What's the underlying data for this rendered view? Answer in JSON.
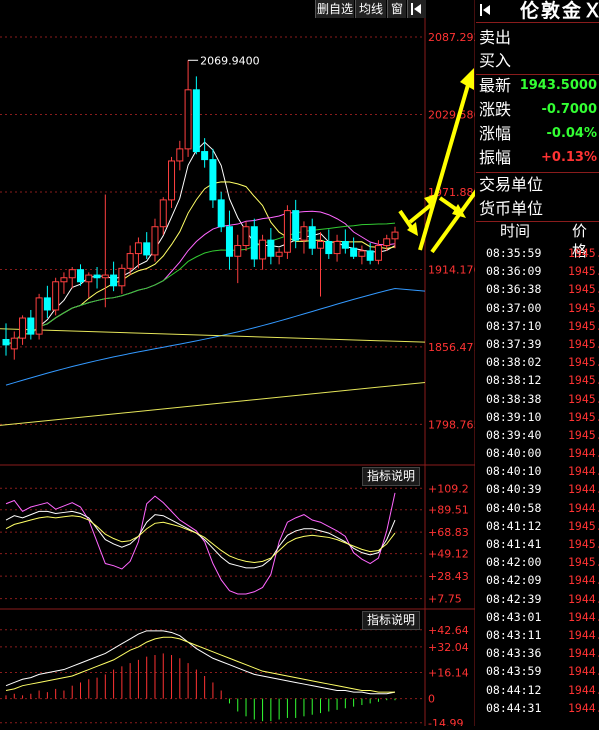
{
  "toolbar": {
    "delete_watch": "删自选",
    "ma_line": "均线",
    "window": "窗",
    "pin_icon": "pin-right-icon"
  },
  "chart_data": [
    {
      "type": "candlestick",
      "title": "",
      "price_axis_ticks": [
        "2087.292",
        "2029.586",
        "1971.881",
        "1914.176",
        "1856.471",
        "1798.765"
      ],
      "high_annotation": "2069.9400",
      "ylim": [
        1770,
        2100
      ],
      "candles": [
        {
          "o": 1862,
          "h": 1874,
          "l": 1850,
          "c": 1858
        },
        {
          "o": 1855,
          "h": 1868,
          "l": 1847,
          "c": 1863
        },
        {
          "o": 1863,
          "h": 1880,
          "l": 1858,
          "c": 1878
        },
        {
          "o": 1878,
          "h": 1884,
          "l": 1862,
          "c": 1866
        },
        {
          "o": 1866,
          "h": 1896,
          "l": 1862,
          "c": 1893
        },
        {
          "o": 1893,
          "h": 1902,
          "l": 1878,
          "c": 1884
        },
        {
          "o": 1884,
          "h": 1908,
          "l": 1880,
          "c": 1905
        },
        {
          "o": 1905,
          "h": 1912,
          "l": 1896,
          "c": 1908
        },
        {
          "o": 1908,
          "h": 1916,
          "l": 1900,
          "c": 1914
        },
        {
          "o": 1914,
          "h": 1918,
          "l": 1902,
          "c": 1905
        },
        {
          "o": 1905,
          "h": 1912,
          "l": 1893,
          "c": 1910
        },
        {
          "o": 1910,
          "h": 1916,
          "l": 1900,
          "c": 1908
        },
        {
          "o": 1908,
          "h": 1970,
          "l": 1886,
          "c": 1910
        },
        {
          "o": 1910,
          "h": 1920,
          "l": 1898,
          "c": 1902
        },
        {
          "o": 1902,
          "h": 1918,
          "l": 1896,
          "c": 1915
        },
        {
          "o": 1915,
          "h": 1932,
          "l": 1910,
          "c": 1926
        },
        {
          "o": 1926,
          "h": 1938,
          "l": 1915,
          "c": 1934
        },
        {
          "o": 1934,
          "h": 1942,
          "l": 1922,
          "c": 1925
        },
        {
          "o": 1925,
          "h": 1952,
          "l": 1920,
          "c": 1946
        },
        {
          "o": 1946,
          "h": 1968,
          "l": 1940,
          "c": 1966
        },
        {
          "o": 1966,
          "h": 1998,
          "l": 1960,
          "c": 1995
        },
        {
          "o": 1995,
          "h": 2010,
          "l": 1988,
          "c": 2004
        },
        {
          "o": 2004,
          "h": 2070,
          "l": 1998,
          "c": 2048
        },
        {
          "o": 2048,
          "h": 2058,
          "l": 2000,
          "c": 2002
        },
        {
          "o": 2002,
          "h": 2012,
          "l": 1990,
          "c": 1996
        },
        {
          "o": 1996,
          "h": 2004,
          "l": 1960,
          "c": 1966
        },
        {
          "o": 1966,
          "h": 1972,
          "l": 1942,
          "c": 1946
        },
        {
          "o": 1946,
          "h": 1958,
          "l": 1914,
          "c": 1924
        },
        {
          "o": 1924,
          "h": 1940,
          "l": 1904,
          "c": 1932
        },
        {
          "o": 1932,
          "h": 1950,
          "l": 1928,
          "c": 1946
        },
        {
          "o": 1946,
          "h": 1952,
          "l": 1916,
          "c": 1922
        },
        {
          "o": 1922,
          "h": 1940,
          "l": 1914,
          "c": 1936
        },
        {
          "o": 1936,
          "h": 1945,
          "l": 1918,
          "c": 1924
        },
        {
          "o": 1924,
          "h": 1930,
          "l": 1918,
          "c": 1927
        },
        {
          "o": 1927,
          "h": 1962,
          "l": 1922,
          "c": 1958
        },
        {
          "o": 1958,
          "h": 1966,
          "l": 1930,
          "c": 1936
        },
        {
          "o": 1936,
          "h": 1950,
          "l": 1926,
          "c": 1946
        },
        {
          "o": 1946,
          "h": 1952,
          "l": 1925,
          "c": 1930
        },
        {
          "o": 1930,
          "h": 1942,
          "l": 1894,
          "c": 1935
        },
        {
          "o": 1935,
          "h": 1944,
          "l": 1922,
          "c": 1926
        },
        {
          "o": 1926,
          "h": 1940,
          "l": 1920,
          "c": 1935
        },
        {
          "o": 1935,
          "h": 1944,
          "l": 1926,
          "c": 1930
        },
        {
          "o": 1930,
          "h": 1938,
          "l": 1922,
          "c": 1924
        },
        {
          "o": 1924,
          "h": 1932,
          "l": 1918,
          "c": 1928
        },
        {
          "o": 1928,
          "h": 1934,
          "l": 1918,
          "c": 1921
        },
        {
          "o": 1921,
          "h": 1936,
          "l": 1918,
          "c": 1932
        },
        {
          "o": 1932,
          "h": 1940,
          "l": 1928,
          "c": 1937
        },
        {
          "o": 1937,
          "h": 1946,
          "l": 1930,
          "c": 1942
        }
      ],
      "trend_lines": [
        {
          "color": "#e6e65a",
          "from": 1870,
          "to": 1860
        },
        {
          "color": "#e6e65a",
          "from": 1798,
          "to": 1830
        }
      ],
      "colors": {
        "up": "#ff4040",
        "down": "#00ffff",
        "ma5": "#ffffff",
        "ma10": "#ffff66",
        "ma20": "#ff66ff",
        "ma60": "#33cc33",
        "ma120": "#3399ff"
      }
    },
    {
      "type": "line",
      "title": "",
      "button": "指标说明",
      "axis_ticks": [
        "+109.2",
        "+89.51",
        "+68.83",
        "+49.12",
        "+28.43",
        "+7.75"
      ],
      "ylim": [
        0,
        115
      ],
      "series": [
        {
          "color": "#ff66ff",
          "values": [
            95,
            98,
            88,
            92,
            94,
            96,
            90,
            93,
            96,
            92,
            80,
            60,
            40,
            38,
            35,
            42,
            60,
            95,
            102,
            96,
            88,
            80,
            75,
            70,
            60,
            40,
            25,
            15,
            12,
            12,
            14,
            18,
            30,
            60,
            78,
            82,
            85,
            80,
            78,
            74,
            70,
            65,
            50,
            44,
            40,
            45,
            70,
            105
          ]
        },
        {
          "color": "#ffffff",
          "values": [
            80,
            84,
            82,
            85,
            88,
            88,
            86,
            87,
            88,
            86,
            82,
            72,
            62,
            58,
            55,
            58,
            65,
            78,
            85,
            84,
            80,
            76,
            72,
            68,
            62,
            54,
            46,
            40,
            38,
            36,
            36,
            38,
            44,
            56,
            66,
            70,
            72,
            72,
            70,
            68,
            64,
            60,
            54,
            50,
            48,
            50,
            62,
            80
          ]
        },
        {
          "color": "#ffff66",
          "values": [
            72,
            76,
            78,
            80,
            82,
            83,
            82,
            83,
            84,
            83,
            80,
            74,
            67,
            63,
            60,
            61,
            65,
            72,
            77,
            78,
            76,
            74,
            71,
            68,
            64,
            58,
            52,
            47,
            44,
            42,
            41,
            42,
            45,
            52,
            59,
            63,
            65,
            66,
            65,
            64,
            62,
            59,
            56,
            53,
            51,
            52,
            58,
            68
          ]
        }
      ]
    },
    {
      "type": "bar",
      "title": "",
      "button": "指标说明",
      "axis_ticks": [
        "+42.64",
        "+32.04",
        "+16.14",
        "0",
        "-14.99"
      ],
      "ylim": [
        -17,
        45
      ],
      "histogram": [
        2,
        3,
        2,
        3,
        5,
        4,
        6,
        5,
        8,
        10,
        12,
        13,
        15,
        18,
        20,
        22,
        24,
        26,
        27,
        28,
        27,
        25,
        22,
        18,
        14,
        10,
        5,
        -3,
        -8,
        -11,
        -13,
        -14,
        -14,
        -13,
        -12,
        -12,
        -11,
        -10,
        -9,
        -8,
        -7,
        -6,
        -5,
        -4,
        -3,
        -2,
        -1,
        -1
      ],
      "series": [
        {
          "color": "#ffffff",
          "values": [
            8,
            10,
            12,
            13,
            15,
            16,
            17,
            18,
            20,
            22,
            24,
            26,
            28,
            31,
            34,
            37,
            40,
            42,
            42,
            42,
            41,
            39,
            35,
            31,
            28,
            25,
            23,
            21,
            19,
            17,
            15,
            14,
            13,
            12,
            11,
            10,
            9,
            8,
            7,
            6,
            5,
            5,
            4,
            4,
            3,
            3,
            3,
            4
          ]
        },
        {
          "color": "#ffff66",
          "values": [
            5,
            6,
            8,
            9,
            10,
            11,
            12,
            13,
            14,
            16,
            18,
            20,
            22,
            24,
            27,
            30,
            32,
            35,
            37,
            38,
            38,
            37,
            35,
            33,
            31,
            29,
            27,
            25,
            23,
            21,
            19,
            17,
            16,
            15,
            14,
            13,
            12,
            11,
            10,
            9,
            8,
            7,
            6,
            5,
            5,
            4,
            4,
            4
          ]
        }
      ]
    }
  ],
  "quote": {
    "symbol_name": "伦敦金Ｘ",
    "pin_icon": "pin-right-icon",
    "sell_label": "卖出",
    "buy_label": "买入",
    "latest_label": "最新",
    "latest_value": "1943.5000",
    "change_label": "涨跌",
    "change_value": "-0.7000",
    "change_pct_label": "涨幅",
    "change_pct_value": "-0.04%",
    "amplitude_label": "振幅",
    "amplitude_value": "+0.13%",
    "trade_unit_label": "交易单位",
    "currency_unit_label": "货币单位",
    "colors": {
      "green": "#33ff33",
      "red": "#ff3333",
      "yellow": "#ffff00"
    }
  },
  "ticks": {
    "time_header": "时间",
    "price_header": "价格",
    "rows": [
      {
        "time": "08:35:59",
        "price": "1945.",
        "color": "#ff3333"
      },
      {
        "time": "08:36:09",
        "price": "1945.",
        "color": "#ff3333"
      },
      {
        "time": "08:36:38",
        "price": "1945.",
        "color": "#ff3333"
      },
      {
        "time": "08:37:00",
        "price": "1945.",
        "color": "#ff3333"
      },
      {
        "time": "08:37:10",
        "price": "1945.",
        "color": "#ff3333"
      },
      {
        "time": "08:37:39",
        "price": "1945.",
        "color": "#ff3333"
      },
      {
        "time": "08:38:02",
        "price": "1945.",
        "color": "#ff3333"
      },
      {
        "time": "08:38:12",
        "price": "1945.",
        "color": "#ff3333"
      },
      {
        "time": "08:38:38",
        "price": "1945.",
        "color": "#ff3333"
      },
      {
        "time": "08:39:10",
        "price": "1945.",
        "color": "#ff3333"
      },
      {
        "time": "08:39:40",
        "price": "1945.",
        "color": "#ff3333"
      },
      {
        "time": "08:40:00",
        "price": "1944.",
        "color": "#ff3333"
      },
      {
        "time": "08:40:10",
        "price": "1944.",
        "color": "#ff3333"
      },
      {
        "time": "08:40:39",
        "price": "1944.",
        "color": "#ff3333"
      },
      {
        "time": "08:40:58",
        "price": "1944.",
        "color": "#ff3333"
      },
      {
        "time": "08:41:12",
        "price": "1945.",
        "color": "#ff3333"
      },
      {
        "time": "08:41:41",
        "price": "1945.",
        "color": "#ff3333"
      },
      {
        "time": "08:42:00",
        "price": "1945.",
        "color": "#ff3333"
      },
      {
        "time": "08:42:09",
        "price": "1944.",
        "color": "#ff3333"
      },
      {
        "time": "08:42:39",
        "price": "1944.",
        "color": "#ff3333"
      },
      {
        "time": "08:43:01",
        "price": "1944.",
        "color": "#ff3333"
      },
      {
        "time": "08:43:11",
        "price": "1944.",
        "color": "#ff3333"
      },
      {
        "time": "08:43:36",
        "price": "1944.",
        "color": "#ff3333"
      },
      {
        "time": "08:43:59",
        "price": "1944.",
        "color": "#ff3333"
      },
      {
        "time": "08:44:12",
        "price": "1944.",
        "color": "#ff3333"
      },
      {
        "time": "08:44:31",
        "price": "1944.",
        "color": "#ff3333"
      }
    ]
  },
  "annotation_arrows": {
    "color": "#ffff00"
  }
}
